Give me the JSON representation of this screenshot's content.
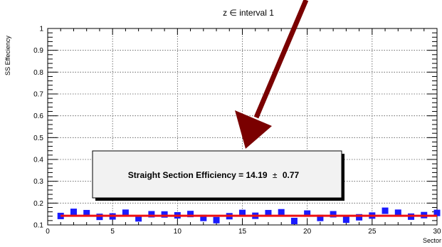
{
  "chart_data": {
    "type": "scatter",
    "title": "z ∈ interval 1",
    "xlabel": "Sector",
    "ylabel": "SS Effeciency",
    "xlim": [
      0,
      30
    ],
    "ylim": [
      0.1,
      1.0
    ],
    "x_ticks": [
      "0",
      "5",
      "10",
      "15",
      "20",
      "25",
      "30"
    ],
    "y_ticks": [
      "0.1",
      "0.2",
      "0.3",
      "0.4",
      "0.5",
      "0.6",
      "0.7",
      "0.8",
      "0.9",
      "1"
    ],
    "grid": true,
    "marker_color": "#1a1aff",
    "fit_color": "#ee1111",
    "arrow_color": "#7a0000",
    "fit_value": 0.142,
    "series": [
      {
        "x": [
          1,
          2,
          3,
          4,
          5,
          6,
          7,
          8,
          9,
          10,
          11,
          12,
          13,
          14,
          15,
          16,
          17,
          18,
          19,
          20,
          21,
          22,
          23,
          24,
          25,
          26,
          27,
          28,
          29,
          30
        ],
        "values": [
          0.141,
          0.16,
          0.154,
          0.137,
          0.139,
          0.156,
          0.13,
          0.149,
          0.148,
          0.144,
          0.15,
          0.132,
          0.122,
          0.14,
          0.155,
          0.142,
          0.154,
          0.158,
          0.118,
          0.152,
          0.132,
          0.149,
          0.124,
          0.135,
          0.143,
          0.165,
          0.156,
          0.138,
          0.145,
          0.155
        ]
      }
    ],
    "annotation": {
      "label": "Straight Section Efficiency = 14.19",
      "pm": "±",
      "error": "0.77"
    }
  }
}
